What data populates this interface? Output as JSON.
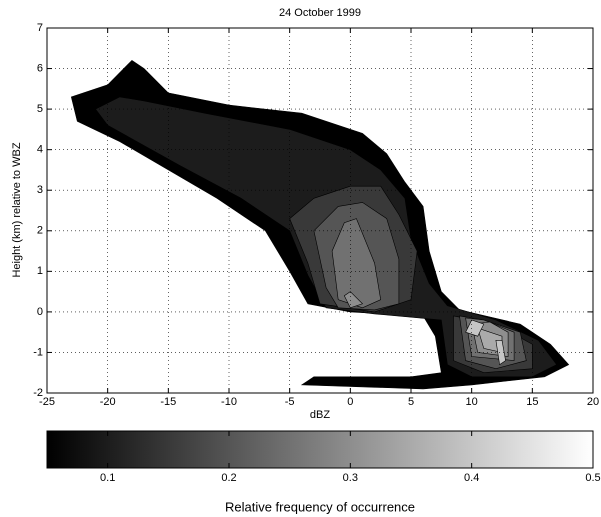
{
  "chart_data": {
    "type": "contour",
    "title": "24 October 1999",
    "xlabel": "dBZ",
    "ylabel": "Height (km) relative to WBZ",
    "xlim": [
      -25,
      20
    ],
    "xticks": [
      -25,
      -20,
      -15,
      -10,
      -5,
      0,
      5,
      10,
      15,
      20
    ],
    "ylim": [
      -2,
      7
    ],
    "yticks": [
      -2,
      -1,
      0,
      1,
      2,
      3,
      4,
      5,
      6,
      7
    ],
    "grid": true,
    "colormap": "gray",
    "contours": [
      {
        "level": 0.05,
        "polygons": [
          [
            [
              -18,
              6.2
            ],
            [
              -20,
              5.6
            ],
            [
              -23,
              5.3
            ],
            [
              -22.5,
              4.7
            ],
            [
              -19,
              4.2
            ],
            [
              -15,
              3.5
            ],
            [
              -11,
              2.8
            ],
            [
              -7,
              2
            ],
            [
              -5,
              1
            ],
            [
              -3.5,
              0.2
            ],
            [
              0,
              0
            ],
            [
              6,
              -0.1
            ],
            [
              7,
              -0.6
            ],
            [
              7.5,
              -1.5
            ],
            [
              5,
              -1.6
            ],
            [
              -3,
              -1.6
            ],
            [
              -4,
              -1.8
            ],
            [
              6,
              -1.9
            ],
            [
              10,
              -1.8
            ],
            [
              16,
              -1.6
            ],
            [
              18,
              -1.3
            ],
            [
              16.5,
              -0.8
            ],
            [
              14,
              -0.3
            ],
            [
              9,
              0.05
            ],
            [
              7.5,
              0.5
            ],
            [
              6.5,
              1.5
            ],
            [
              6,
              2.6
            ],
            [
              4.5,
              3.2
            ],
            [
              3,
              3.9
            ],
            [
              1,
              4.4
            ],
            [
              -4,
              4.9
            ],
            [
              -10,
              5.1
            ],
            [
              -15,
              5.4
            ],
            [
              -17,
              6
            ]
          ]
        ]
      },
      {
        "level": 0.1,
        "polygons": [
          [
            [
              -19,
              5.3
            ],
            [
              -21,
              5
            ],
            [
              -20,
              4.6
            ],
            [
              -14,
              3.6
            ],
            [
              -9,
              2.8
            ],
            [
              -5,
              2
            ],
            [
              -3.5,
              0.9
            ],
            [
              -2,
              0.1
            ],
            [
              2,
              -0.05
            ],
            [
              7.5,
              -0.2
            ],
            [
              8,
              -1.3
            ],
            [
              10,
              -1.6
            ],
            [
              15,
              -1.6
            ],
            [
              17,
              -1.3
            ],
            [
              15.5,
              -0.7
            ],
            [
              12,
              -0.2
            ],
            [
              8,
              0.15
            ],
            [
              6.5,
              0.7
            ],
            [
              5,
              1.8
            ],
            [
              4.5,
              2.8
            ],
            [
              2.5,
              3.5
            ],
            [
              0,
              4
            ],
            [
              -5,
              4.5
            ],
            [
              -12,
              4.9
            ],
            [
              -17,
              5.2
            ]
          ]
        ]
      },
      {
        "level": 0.15,
        "polygons": [
          [
            [
              -5,
              2.3
            ],
            [
              -3.5,
              1.2
            ],
            [
              -2.5,
              0.2
            ],
            [
              2,
              0
            ],
            [
              5,
              0.3
            ],
            [
              5.5,
              1.5
            ],
            [
              4,
              2.4
            ],
            [
              2.5,
              3.1
            ],
            [
              0,
              3.1
            ],
            [
              -3,
              2.8
            ]
          ],
          [
            [
              8.5,
              -0.1
            ],
            [
              8.5,
              -1.2
            ],
            [
              11,
              -1.5
            ],
            [
              15,
              -1.4
            ],
            [
              15,
              -0.8
            ],
            [
              12,
              -0.3
            ]
          ]
        ]
      },
      {
        "level": 0.2,
        "polygons": [
          [
            [
              -3,
              2
            ],
            [
              -2,
              0.6
            ],
            [
              -1,
              0.1
            ],
            [
              2,
              0.05
            ],
            [
              4,
              0.2
            ],
            [
              4,
              1.3
            ],
            [
              3,
              2.3
            ],
            [
              1,
              2.7
            ],
            [
              -1,
              2.6
            ]
          ],
          [
            [
              9,
              -0.1
            ],
            [
              9.5,
              -1.2
            ],
            [
              12,
              -1.4
            ],
            [
              14.5,
              -1.2
            ],
            [
              14,
              -0.5
            ],
            [
              11,
              -0.2
            ]
          ]
        ]
      },
      {
        "level": 0.25,
        "polygons": [
          [
            [
              -1.5,
              1.5
            ],
            [
              -1,
              0.3
            ],
            [
              1,
              0.1
            ],
            [
              2.5,
              0.3
            ],
            [
              2,
              1.2
            ],
            [
              0.5,
              2.3
            ],
            [
              -0.5,
              2.2
            ]
          ],
          [
            [
              9.5,
              -0.15
            ],
            [
              10,
              -1.1
            ],
            [
              13.5,
              -1.2
            ],
            [
              13.5,
              -0.5
            ],
            [
              11,
              -0.2
            ]
          ]
        ]
      },
      {
        "level": 0.3,
        "polygons": [
          [
            [
              10,
              -0.3
            ],
            [
              10.5,
              -1
            ],
            [
              13,
              -1.1
            ],
            [
              13,
              -0.5
            ],
            [
              11.5,
              -0.25
            ]
          ],
          [
            [
              -0.5,
              0.4
            ],
            [
              0,
              0.1
            ],
            [
              1,
              0.2
            ],
            [
              0,
              0.5
            ]
          ]
        ]
      },
      {
        "level": 0.35,
        "polygons": [
          [
            [
              10.5,
              -0.4
            ],
            [
              11,
              -0.9
            ],
            [
              12.5,
              -1
            ],
            [
              12.5,
              -0.6
            ]
          ]
        ]
      },
      {
        "level": 0.4,
        "polygons": [
          [
            [
              9.5,
              -0.5
            ],
            [
              10,
              -0.2
            ],
            [
              11,
              -0.3
            ],
            [
              10.5,
              -0.6
            ]
          ],
          [
            [
              12,
              -0.7
            ],
            [
              12.3,
              -1.3
            ],
            [
              12.8,
              -1.2
            ],
            [
              12.5,
              -0.7
            ]
          ]
        ]
      }
    ],
    "colorbar": {
      "lim": [
        0.05,
        0.5
      ],
      "ticks": [
        0.1,
        0.2,
        0.3,
        0.4,
        0.5
      ],
      "label": "Relative frequency of occurrence"
    }
  }
}
